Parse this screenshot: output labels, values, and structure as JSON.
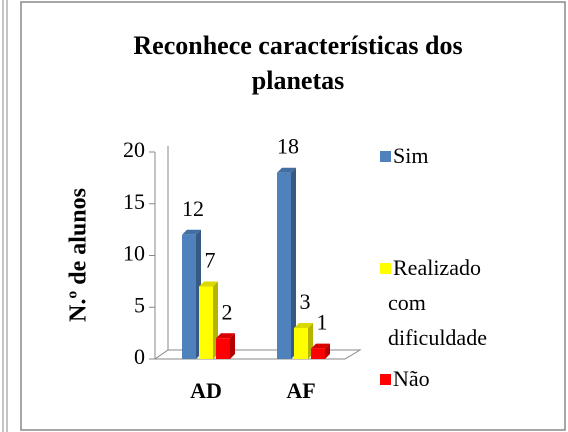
{
  "chart_data": {
    "type": "bar3d",
    "title": [
      "Reconhece características dos",
      "planetas"
    ],
    "y_label": "N.º de alunos",
    "categories": [
      "AD",
      "AF"
    ],
    "series": [
      {
        "name": "Sim",
        "color": "#4f81bd",
        "values": [
          12,
          18
        ]
      },
      {
        "name": "Realizado com dificuldade",
        "color": "#ffff00",
        "values": [
          7,
          3
        ]
      },
      {
        "name": "Não",
        "color": "#ff0000",
        "values": [
          2,
          1
        ]
      }
    ],
    "ylim": [
      0,
      20
    ],
    "yticks": [
      0,
      5,
      10,
      15,
      20
    ],
    "legend": "right"
  }
}
